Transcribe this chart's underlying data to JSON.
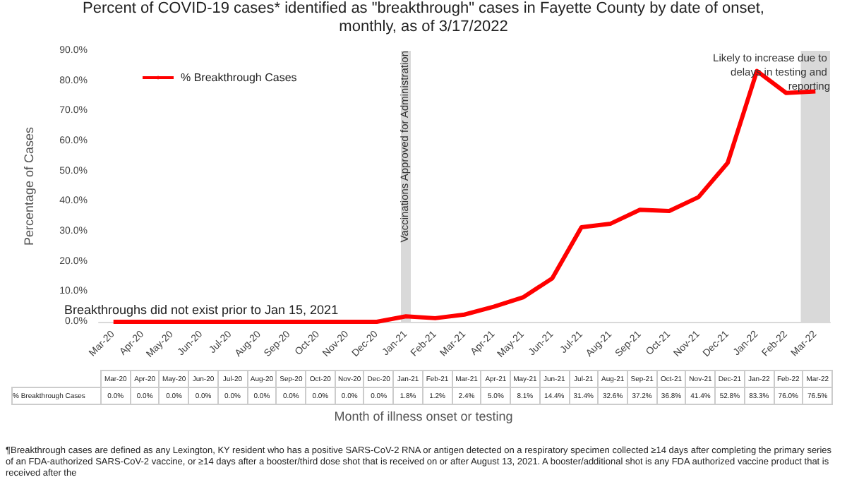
{
  "chart_data": {
    "type": "line",
    "title": "Percent of COVID-19 cases* identified as \"breakthrough\" cases in Fayette County by date of onset, monthly, as of 3/17/2022",
    "xlabel": "Month of illness onset or testing",
    "ylabel": "Percentage of Cases",
    "categories": [
      "Mar-20",
      "Apr-20",
      "May-20",
      "Jun-20",
      "Jul-20",
      "Aug-20",
      "Sep-20",
      "Oct-20",
      "Nov-20",
      "Dec-20",
      "Jan-21",
      "Feb-21",
      "Mar-21",
      "Apr-21",
      "May-21",
      "Jun-21",
      "Jul-21",
      "Aug-21",
      "Sep-21",
      "Oct-21",
      "Nov-21",
      "Dec-21",
      "Jan-22",
      "Feb-22",
      "Mar-22"
    ],
    "series": [
      {
        "name": "% Breakthrough Cases",
        "color": "#ff0000",
        "values": [
          0.0,
          0.0,
          0.0,
          0.0,
          0.0,
          0.0,
          0.0,
          0.0,
          0.0,
          0.0,
          1.8,
          1.2,
          2.4,
          5.0,
          8.1,
          14.4,
          31.4,
          32.6,
          37.2,
          36.8,
          41.4,
          52.8,
          83.3,
          76.0,
          76.5
        ],
        "value_labels": [
          "0.0%",
          "0.0%",
          "0.0%",
          "0.0%",
          "0.0%",
          "0.0%",
          "0.0%",
          "0.0%",
          "0.0%",
          "0.0%",
          "1.8%",
          "1.2%",
          "2.4%",
          "5.0%",
          "8.1%",
          "14.4%",
          "31.4%",
          "32.6%",
          "37.2%",
          "36.8%",
          "41.4%",
          "52.8%",
          "83.3%",
          "76.0%",
          "76.5%"
        ]
      }
    ],
    "ylim": [
      0,
      90
    ],
    "yticks": [
      {
        "value": 0,
        "label": "0.0%"
      },
      {
        "value": 10,
        "label": "10.0%"
      },
      {
        "value": 20,
        "label": "20.0%"
      },
      {
        "value": 30,
        "label": "30.0%"
      },
      {
        "value": 40,
        "label": "40.0%"
      },
      {
        "value": 50,
        "label": "50.0%"
      },
      {
        "value": 60,
        "label": "60.0%"
      },
      {
        "value": 70,
        "label": "70.0%"
      },
      {
        "value": 80,
        "label": "80.0%"
      },
      {
        "value": 90,
        "label": "90.0%"
      }
    ],
    "ref_lines": [
      {
        "axis": "x",
        "value": "Jan-21",
        "label": "Vaccinations Approved for Administration",
        "color": "#d9d9d9"
      }
    ],
    "bands": [
      {
        "axis": "x",
        "from": "Mar-22",
        "to": "Mar-22",
        "label": "Likely to increase due to delays in testing and reporting",
        "color": "#d9d9d9"
      }
    ],
    "annotations": [
      {
        "text": "Breakthroughs did not exist prior to Jan 15, 2021",
        "x": "Jun-20",
        "y": 0
      },
      "¶Breakthrough cases are defined as any Lexington, KY resident who has a positive SARS-CoV-2 RNA or antigen detected on a respiratory specimen collected ≥14 days after completing the primary series of an FDA-authorized SARS-CoV-2 vaccine, or ≥14 days after a booster/third dose shot that is received on or after August 13, 2021. A booster/additional shot is any FDA authorized vaccine product that is received after the"
    ],
    "grid": false,
    "legend": "top left",
    "marker": "none",
    "line_style": "solid"
  }
}
